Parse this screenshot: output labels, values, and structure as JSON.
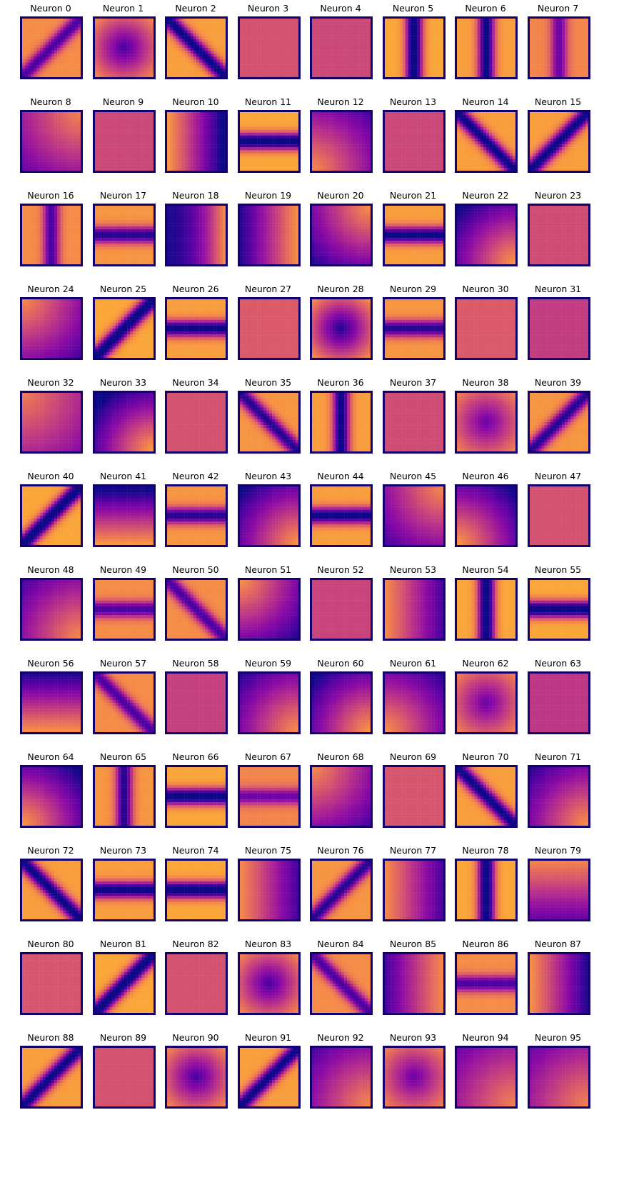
{
  "chart_data": {
    "type": "heatmap",
    "colormap": "plasma",
    "frame_color": "#13006f",
    "colors": {
      "low": "#5302a3",
      "mid": "#cc4778",
      "high": "#f0f921"
    },
    "grid": {
      "rows": 12,
      "cols": 8
    },
    "title_prefix": "Neuron",
    "panels": [
      {
        "title": "Neuron 0",
        "pattern": "diag_band_tr_bl",
        "strength": 0.6
      },
      {
        "title": "Neuron 1",
        "pattern": "center_dark",
        "strength": 0.6
      },
      {
        "title": "Neuron 2",
        "pattern": "diag_band_tl_br",
        "strength": 0.8
      },
      {
        "title": "Neuron 3",
        "pattern": "flat",
        "strength": 0.2
      },
      {
        "title": "Neuron 4",
        "pattern": "flat",
        "strength": 0.3
      },
      {
        "title": "Neuron 5",
        "pattern": "vertical_band",
        "strength": 0.9
      },
      {
        "title": "Neuron 6",
        "pattern": "vertical_band",
        "strength": 0.8
      },
      {
        "title": "Neuron 7",
        "pattern": "vertical_band",
        "strength": 0.5
      },
      {
        "title": "Neuron 8",
        "pattern": "corner_tr",
        "strength": 0.5
      },
      {
        "title": "Neuron 9",
        "pattern": "flat",
        "strength": 0.3
      },
      {
        "title": "Neuron 10",
        "pattern": "left_bright",
        "strength": 0.8
      },
      {
        "title": "Neuron 11",
        "pattern": "horizontal_band",
        "strength": 0.9
      },
      {
        "title": "Neuron 12",
        "pattern": "corner_bl",
        "strength": 0.6
      },
      {
        "title": "Neuron 13",
        "pattern": "flat",
        "strength": 0.3
      },
      {
        "title": "Neuron 14",
        "pattern": "diag_band_tl_br",
        "strength": 0.8
      },
      {
        "title": "Neuron 15",
        "pattern": "diag_band_tr_bl",
        "strength": 0.8
      },
      {
        "title": "Neuron 16",
        "pattern": "vertical_band",
        "strength": 0.6
      },
      {
        "title": "Neuron 17",
        "pattern": "horizontal_band",
        "strength": 0.7
      },
      {
        "title": "Neuron 18",
        "pattern": "left_dark",
        "strength": 0.7
      },
      {
        "title": "Neuron 19",
        "pattern": "right_bright",
        "strength": 0.7
      },
      {
        "title": "Neuron 20",
        "pattern": "corner_tr",
        "strength": 0.7
      },
      {
        "title": "Neuron 21",
        "pattern": "horizontal_band",
        "strength": 0.8
      },
      {
        "title": "Neuron 22",
        "pattern": "corner_br",
        "strength": 0.8
      },
      {
        "title": "Neuron 23",
        "pattern": "flat",
        "strength": 0.25
      },
      {
        "title": "Neuron 24",
        "pattern": "corner_tl",
        "strength": 0.6
      },
      {
        "title": "Neuron 25",
        "pattern": "diag_band_tr_bl",
        "strength": 0.9
      },
      {
        "title": "Neuron 26",
        "pattern": "horizontal_band",
        "strength": 0.8
      },
      {
        "title": "Neuron 27",
        "pattern": "flat",
        "strength": 0.1
      },
      {
        "title": "Neuron 28",
        "pattern": "center_dark",
        "strength": 0.7
      },
      {
        "title": "Neuron 29",
        "pattern": "horizontal_band",
        "strength": 0.7
      },
      {
        "title": "Neuron 30",
        "pattern": "flat",
        "strength": 0.1
      },
      {
        "title": "Neuron 31",
        "pattern": "flat",
        "strength": 0.45
      },
      {
        "title": "Neuron 32",
        "pattern": "corner_tl",
        "strength": 0.4
      },
      {
        "title": "Neuron 33",
        "pattern": "corner_br",
        "strength": 0.9
      },
      {
        "title": "Neuron 34",
        "pattern": "flat",
        "strength": 0.2
      },
      {
        "title": "Neuron 35",
        "pattern": "diag_band_tl_br",
        "strength": 0.7
      },
      {
        "title": "Neuron 36",
        "pattern": "vertical_band",
        "strength": 0.8
      },
      {
        "title": "Neuron 37",
        "pattern": "flat",
        "strength": 0.25
      },
      {
        "title": "Neuron 38",
        "pattern": "center_dark",
        "strength": 0.5
      },
      {
        "title": "Neuron 39",
        "pattern": "diag_band_tr_bl",
        "strength": 0.7
      },
      {
        "title": "Neuron 40",
        "pattern": "diag_band_tr_bl",
        "strength": 0.9
      },
      {
        "title": "Neuron 41",
        "pattern": "bottom_bright",
        "strength": 0.8
      },
      {
        "title": "Neuron 42",
        "pattern": "horizontal_band",
        "strength": 0.7
      },
      {
        "title": "Neuron 43",
        "pattern": "corner_br",
        "strength": 0.8
      },
      {
        "title": "Neuron 44",
        "pattern": "horizontal_band",
        "strength": 0.8
      },
      {
        "title": "Neuron 45",
        "pattern": "corner_tr",
        "strength": 0.6
      },
      {
        "title": "Neuron 46",
        "pattern": "corner_bl",
        "strength": 0.8
      },
      {
        "title": "Neuron 47",
        "pattern": "flat",
        "strength": 0.2
      },
      {
        "title": "Neuron 48",
        "pattern": "corner_br",
        "strength": 0.6
      },
      {
        "title": "Neuron 49",
        "pattern": "horizontal_band",
        "strength": 0.6
      },
      {
        "title": "Neuron 50",
        "pattern": "diag_band_tl_br",
        "strength": 0.6
      },
      {
        "title": "Neuron 51",
        "pattern": "corner_tl",
        "strength": 0.7
      },
      {
        "title": "Neuron 52",
        "pattern": "flat",
        "strength": 0.35
      },
      {
        "title": "Neuron 53",
        "pattern": "left_bright",
        "strength": 0.6
      },
      {
        "title": "Neuron 54",
        "pattern": "vertical_band",
        "strength": 0.9
      },
      {
        "title": "Neuron 55",
        "pattern": "horizontal_band",
        "strength": 0.9
      },
      {
        "title": "Neuron 56",
        "pattern": "bottom_bright",
        "strength": 0.7
      },
      {
        "title": "Neuron 57",
        "pattern": "diag_band_tl_br",
        "strength": 0.6
      },
      {
        "title": "Neuron 58",
        "pattern": "flat",
        "strength": 0.4
      },
      {
        "title": "Neuron 59",
        "pattern": "corner_br",
        "strength": 0.7
      },
      {
        "title": "Neuron 60",
        "pattern": "corner_br",
        "strength": 0.8
      },
      {
        "title": "Neuron 61",
        "pattern": "corner_bl",
        "strength": 0.7
      },
      {
        "title": "Neuron 62",
        "pattern": "center_dark",
        "strength": 0.5
      },
      {
        "title": "Neuron 63",
        "pattern": "flat",
        "strength": 0.5
      },
      {
        "title": "Neuron 64",
        "pattern": "corner_bl",
        "strength": 0.8
      },
      {
        "title": "Neuron 65",
        "pattern": "vertical_band",
        "strength": 0.7
      },
      {
        "title": "Neuron 66",
        "pattern": "horizontal_band",
        "strength": 0.9
      },
      {
        "title": "Neuron 67",
        "pattern": "horizontal_band",
        "strength": 0.5
      },
      {
        "title": "Neuron 68",
        "pattern": "corner_tl",
        "strength": 0.6
      },
      {
        "title": "Neuron 69",
        "pattern": "flat",
        "strength": 0.15
      },
      {
        "title": "Neuron 70",
        "pattern": "diag_band_tl_br",
        "strength": 0.8
      },
      {
        "title": "Neuron 71",
        "pattern": "corner_br",
        "strength": 0.7
      },
      {
        "title": "Neuron 72",
        "pattern": "diag_band_tl_br",
        "strength": 0.8
      },
      {
        "title": "Neuron 73",
        "pattern": "horizontal_band",
        "strength": 0.8
      },
      {
        "title": "Neuron 74",
        "pattern": "horizontal_band",
        "strength": 0.9
      },
      {
        "title": "Neuron 75",
        "pattern": "left_bright",
        "strength": 0.6
      },
      {
        "title": "Neuron 76",
        "pattern": "diag_band_tr_bl",
        "strength": 0.7
      },
      {
        "title": "Neuron 77",
        "pattern": "left_bright",
        "strength": 0.6
      },
      {
        "title": "Neuron 78",
        "pattern": "vertical_band",
        "strength": 0.9
      },
      {
        "title": "Neuron 79",
        "pattern": "top_bright",
        "strength": 0.5
      },
      {
        "title": "Neuron 80",
        "pattern": "flat",
        "strength": 0.15
      },
      {
        "title": "Neuron 81",
        "pattern": "diag_band_tr_bl",
        "strength": 0.9
      },
      {
        "title": "Neuron 82",
        "pattern": "flat",
        "strength": 0.2
      },
      {
        "title": "Neuron 83",
        "pattern": "center_dark",
        "strength": 0.6
      },
      {
        "title": "Neuron 84",
        "pattern": "diag_band_tl_br",
        "strength": 0.6
      },
      {
        "title": "Neuron 85",
        "pattern": "right_bright",
        "strength": 0.6
      },
      {
        "title": "Neuron 86",
        "pattern": "horizontal_band",
        "strength": 0.6
      },
      {
        "title": "Neuron 87",
        "pattern": "left_bright",
        "strength": 0.7
      },
      {
        "title": "Neuron 88",
        "pattern": "diag_band_tr_bl",
        "strength": 0.8
      },
      {
        "title": "Neuron 89",
        "pattern": "flat",
        "strength": 0.2
      },
      {
        "title": "Neuron 90",
        "pattern": "center_dark",
        "strength": 0.6
      },
      {
        "title": "Neuron 91",
        "pattern": "diag_band_tr_bl",
        "strength": 0.8
      },
      {
        "title": "Neuron 92",
        "pattern": "corner_br",
        "strength": 0.6
      },
      {
        "title": "Neuron 93",
        "pattern": "center_dark",
        "strength": 0.5
      },
      {
        "title": "Neuron 94",
        "pattern": "corner_br",
        "strength": 0.5
      },
      {
        "title": "Neuron 95",
        "pattern": "corner_br",
        "strength": 0.5
      }
    ]
  }
}
